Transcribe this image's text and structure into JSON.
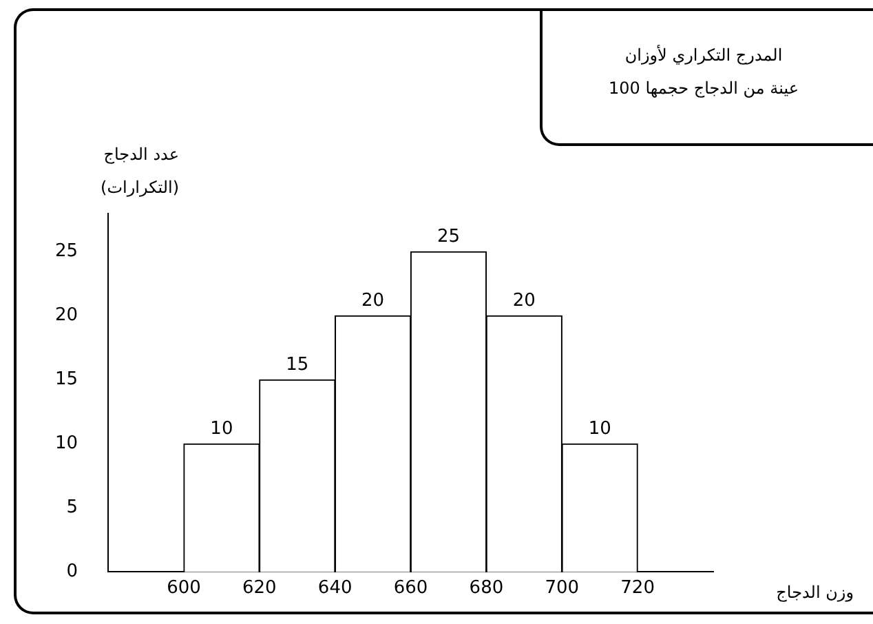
{
  "chart_data": {
    "type": "histogram",
    "title": "المدرج التكراري لأوزان",
    "subtitle": "عينة من الدجاج حجمها 100",
    "ylabel": "عدد الدجاج\n(التكرارات)",
    "xlabel": "وزن الدجاج",
    "bins": [
      600,
      620,
      640,
      660,
      680,
      700,
      720
    ],
    "values": [
      10,
      15,
      20,
      25,
      20,
      10
    ],
    "color": "#ffffff",
    "xlim": [
      580,
      740
    ],
    "xticks": [
      600,
      620,
      640,
      660,
      680,
      700,
      720
    ],
    "ylim": [
      0,
      28
    ],
    "yticks": [
      0,
      5,
      10,
      15,
      20,
      25
    ],
    "data_labels": true,
    "grid": false,
    "legend": false
  }
}
